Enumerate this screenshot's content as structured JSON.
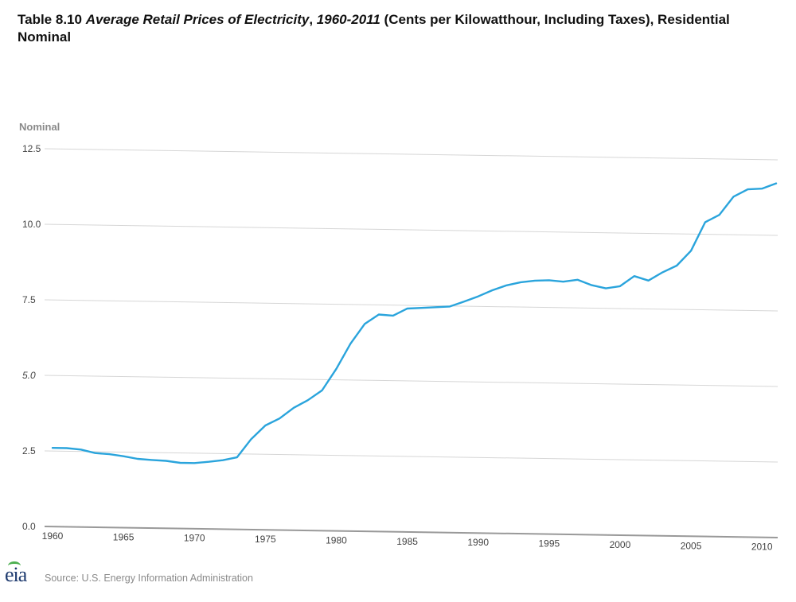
{
  "title": {
    "prefix": "Table 8.10 ",
    "italic1": "Average Retail Prices of Electricity",
    "middle": ", ",
    "italic2": "1960-2011",
    "suffix": " (Cents per Kilowatthour, Including Taxes), Residential Nominal"
  },
  "source": "Source: U.S. Energy Information Administration",
  "logo": {
    "text": "eia",
    "icon": "eia-logo-icon"
  },
  "colors": {
    "line": "#2aa4dc",
    "grid": "#d6d6d6",
    "axis": "#999999"
  },
  "chart_data": {
    "type": "line",
    "ylabel": "Nominal",
    "xlim": [
      1960,
      2011
    ],
    "ylim": [
      0,
      12.5
    ],
    "xticks": [
      1960,
      1965,
      1970,
      1975,
      1980,
      1985,
      1990,
      1995,
      2000,
      2005,
      2010
    ],
    "yticks": [
      "0.0",
      "2.5",
      "7.5",
      "10.0",
      "12.5"
    ],
    "yticks_values": [
      0,
      2.5,
      7.5,
      10,
      12.5
    ],
    "ytick_italic_label": "5.0",
    "grid": true,
    "legend": "none",
    "series": [
      {
        "x": [
          1960,
          1961,
          1962,
          1963,
          1964,
          1965,
          1966,
          1967,
          1968,
          1969,
          1970,
          1971,
          1972,
          1973,
          1974,
          1975,
          1976,
          1977,
          1978,
          1979,
          1980,
          1981,
          1982,
          1983,
          1984,
          1985,
          1986,
          1987,
          1988,
          1989,
          1990,
          1991,
          1992,
          1993,
          1994,
          1995,
          1996,
          1997,
          1998,
          1999,
          2000,
          2001,
          2002,
          2003,
          2004,
          2005,
          2006,
          2007,
          2008,
          2009,
          2010,
          2011
        ],
        "values": [
          2.6,
          2.6,
          2.56,
          2.45,
          2.42,
          2.36,
          2.28,
          2.25,
          2.23,
          2.17,
          2.17,
          2.22,
          2.28,
          2.38,
          2.99,
          3.45,
          3.69,
          4.05,
          4.31,
          4.64,
          5.36,
          6.2,
          6.86,
          7.18,
          7.15,
          7.39,
          7.42,
          7.45,
          7.48,
          7.65,
          7.83,
          8.04,
          8.21,
          8.32,
          8.38,
          8.4,
          8.36,
          8.43,
          8.26,
          8.16,
          8.24,
          8.58,
          8.44,
          8.72,
          8.95,
          9.45,
          10.4,
          10.65,
          11.26,
          11.51,
          11.54,
          11.72
        ]
      }
    ]
  }
}
